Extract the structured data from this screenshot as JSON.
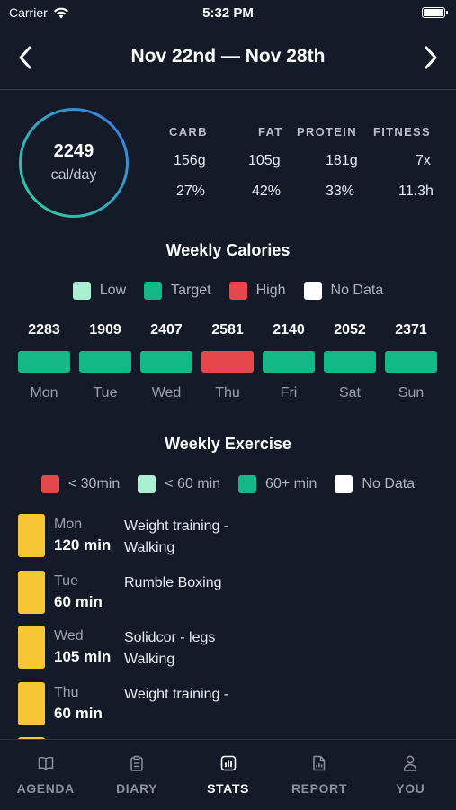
{
  "status_bar": {
    "carrier": "Carrier",
    "time": "5:32 PM"
  },
  "header": {
    "date_range": "Nov 22nd — Nov 28th",
    "prev_icon": "chevron-left-icon",
    "next_icon": "chevron-right-icon"
  },
  "summary": {
    "calories": "2249",
    "unit": "cal/day",
    "macros": [
      {
        "label": "CARB",
        "amount": "156g",
        "share": "27%"
      },
      {
        "label": "FAT",
        "amount": "105g",
        "share": "42%"
      },
      {
        "label": "PROTEIN",
        "amount": "181g",
        "share": "33%"
      },
      {
        "label": "FITNESS",
        "amount": "7x",
        "share": "11.3h"
      }
    ]
  },
  "weekly_calories": {
    "title": "Weekly Calories",
    "legend": [
      {
        "label": "Low",
        "color": "#a8f0cf"
      },
      {
        "label": "Target",
        "color": "#13b886"
      },
      {
        "label": "High",
        "color": "#e5484a"
      },
      {
        "label": "No Data",
        "color": "#ffffff"
      }
    ],
    "days": [
      {
        "name": "Mon",
        "calories": "2283",
        "status": "Target",
        "color": "#13b886"
      },
      {
        "name": "Tue",
        "calories": "1909",
        "status": "Target",
        "color": "#13b886"
      },
      {
        "name": "Wed",
        "calories": "2407",
        "status": "Target",
        "color": "#13b886"
      },
      {
        "name": "Thu",
        "calories": "2581",
        "status": "High",
        "color": "#e5484a"
      },
      {
        "name": "Fri",
        "calories": "2140",
        "status": "Target",
        "color": "#13b886"
      },
      {
        "name": "Sat",
        "calories": "2052",
        "status": "Target",
        "color": "#13b886"
      },
      {
        "name": "Sun",
        "calories": "2371",
        "status": "Target",
        "color": "#13b886"
      }
    ]
  },
  "weekly_exercise": {
    "title": "Weekly Exercise",
    "legend": [
      {
        "label": "< 30min",
        "color": "#e5484a"
      },
      {
        "label": "< 60 min",
        "color": "#a8f0cf"
      },
      {
        "label": "60+ min",
        "color": "#13b886"
      },
      {
        "label": "No Data",
        "color": "#ffffff"
      }
    ],
    "entries": [
      {
        "day": "Mon",
        "duration": "120 min",
        "activities": [
          "Weight training -",
          "Walking"
        ]
      },
      {
        "day": "Tue",
        "duration": "60 min",
        "activities": [
          "Rumble Boxing"
        ]
      },
      {
        "day": "Wed",
        "duration": "105 min",
        "activities": [
          "Solidcor - legs",
          "Walking"
        ]
      },
      {
        "day": "Thu",
        "duration": "60 min",
        "activities": [
          "Weight training -"
        ]
      }
    ],
    "bar_color": "#f6c635"
  },
  "tabs": [
    {
      "label": "AGENDA",
      "icon": "book-icon",
      "active": false
    },
    {
      "label": "DIARY",
      "icon": "clipboard-icon",
      "active": false
    },
    {
      "label": "STATS",
      "icon": "chart-icon",
      "active": true
    },
    {
      "label": "REPORT",
      "icon": "document-chart-icon",
      "active": false
    },
    {
      "label": "YOU",
      "icon": "person-icon",
      "active": false
    }
  ]
}
